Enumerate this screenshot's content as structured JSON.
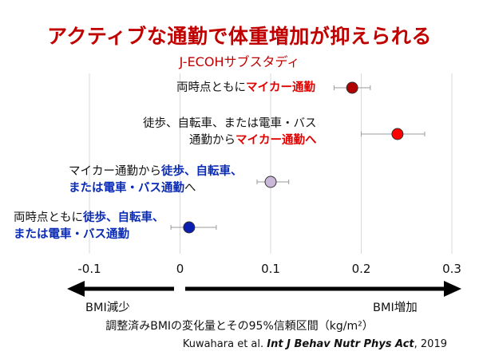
{
  "title": "アクティブな通勤で体重増加が抑えられる",
  "subtitle": "J-ECOHサブスタディ",
  "colors": {
    "title": "#c00000",
    "red_text": "#e00000",
    "blue_text": "#0a2bb5",
    "pale_text": "#111111"
  },
  "chart_data": {
    "type": "forest",
    "x_range": [
      -0.1,
      0.3
    ],
    "x_ticks": [
      -0.1,
      0,
      0.1,
      0.2,
      0.3
    ],
    "x_tick_labels": [
      "-0.1",
      "0",
      "0.1",
      "0.2",
      "0.3"
    ],
    "grid": "vertical",
    "rows": [
      {
        "label_segments": [
          {
            "text": "両時点ともに",
            "style": "plain"
          },
          {
            "text": "マイカー通勤",
            "style": "red"
          }
        ],
        "estimate": 0.19,
        "ci": [
          0.17,
          0.21
        ],
        "marker_color": "#b00000"
      },
      {
        "label_lines": [
          [
            {
              "text": "徒歩、自転車、または電車・バス",
              "style": "plain"
            }
          ],
          [
            {
              "text": "通勤から",
              "style": "plain"
            },
            {
              "text": "マイカー通勤へ",
              "style": "red"
            }
          ]
        ],
        "estimate": 0.24,
        "ci": [
          0.2,
          0.27
        ],
        "marker_color": "#ff0000"
      },
      {
        "label_lines": [
          [
            {
              "text": "マイカー通勤から",
              "style": "plain"
            },
            {
              "text": "徒歩、自転車、",
              "style": "blue"
            }
          ],
          [
            {
              "text": "または電車・バス通勤",
              "style": "blue"
            },
            {
              "text": "へ",
              "style": "plain"
            }
          ]
        ],
        "estimate": 0.1,
        "ci": [
          0.085,
          0.12
        ],
        "marker_color": "#c9b8d8"
      },
      {
        "label_lines": [
          [
            {
              "text": "両時点ともに",
              "style": "plain"
            },
            {
              "text": "徒歩、自転車、",
              "style": "blue"
            }
          ],
          [
            {
              "text": "または電車・バス通勤",
              "style": "blue"
            }
          ]
        ],
        "estimate": 0.01,
        "ci": [
          -0.01,
          0.04
        ],
        "marker_color": "#0a1fb0"
      }
    ],
    "arrow_left_label": "BMI減少",
    "arrow_right_label": "BMI増加",
    "xlabel": "調整済みBMIの変化量とその95%信頼区間（kg/m²）"
  },
  "citation": {
    "authors": "Kuwahara et al.",
    "journal": "Int J Behav Nutr Phys Act",
    "year": ", 2019"
  }
}
